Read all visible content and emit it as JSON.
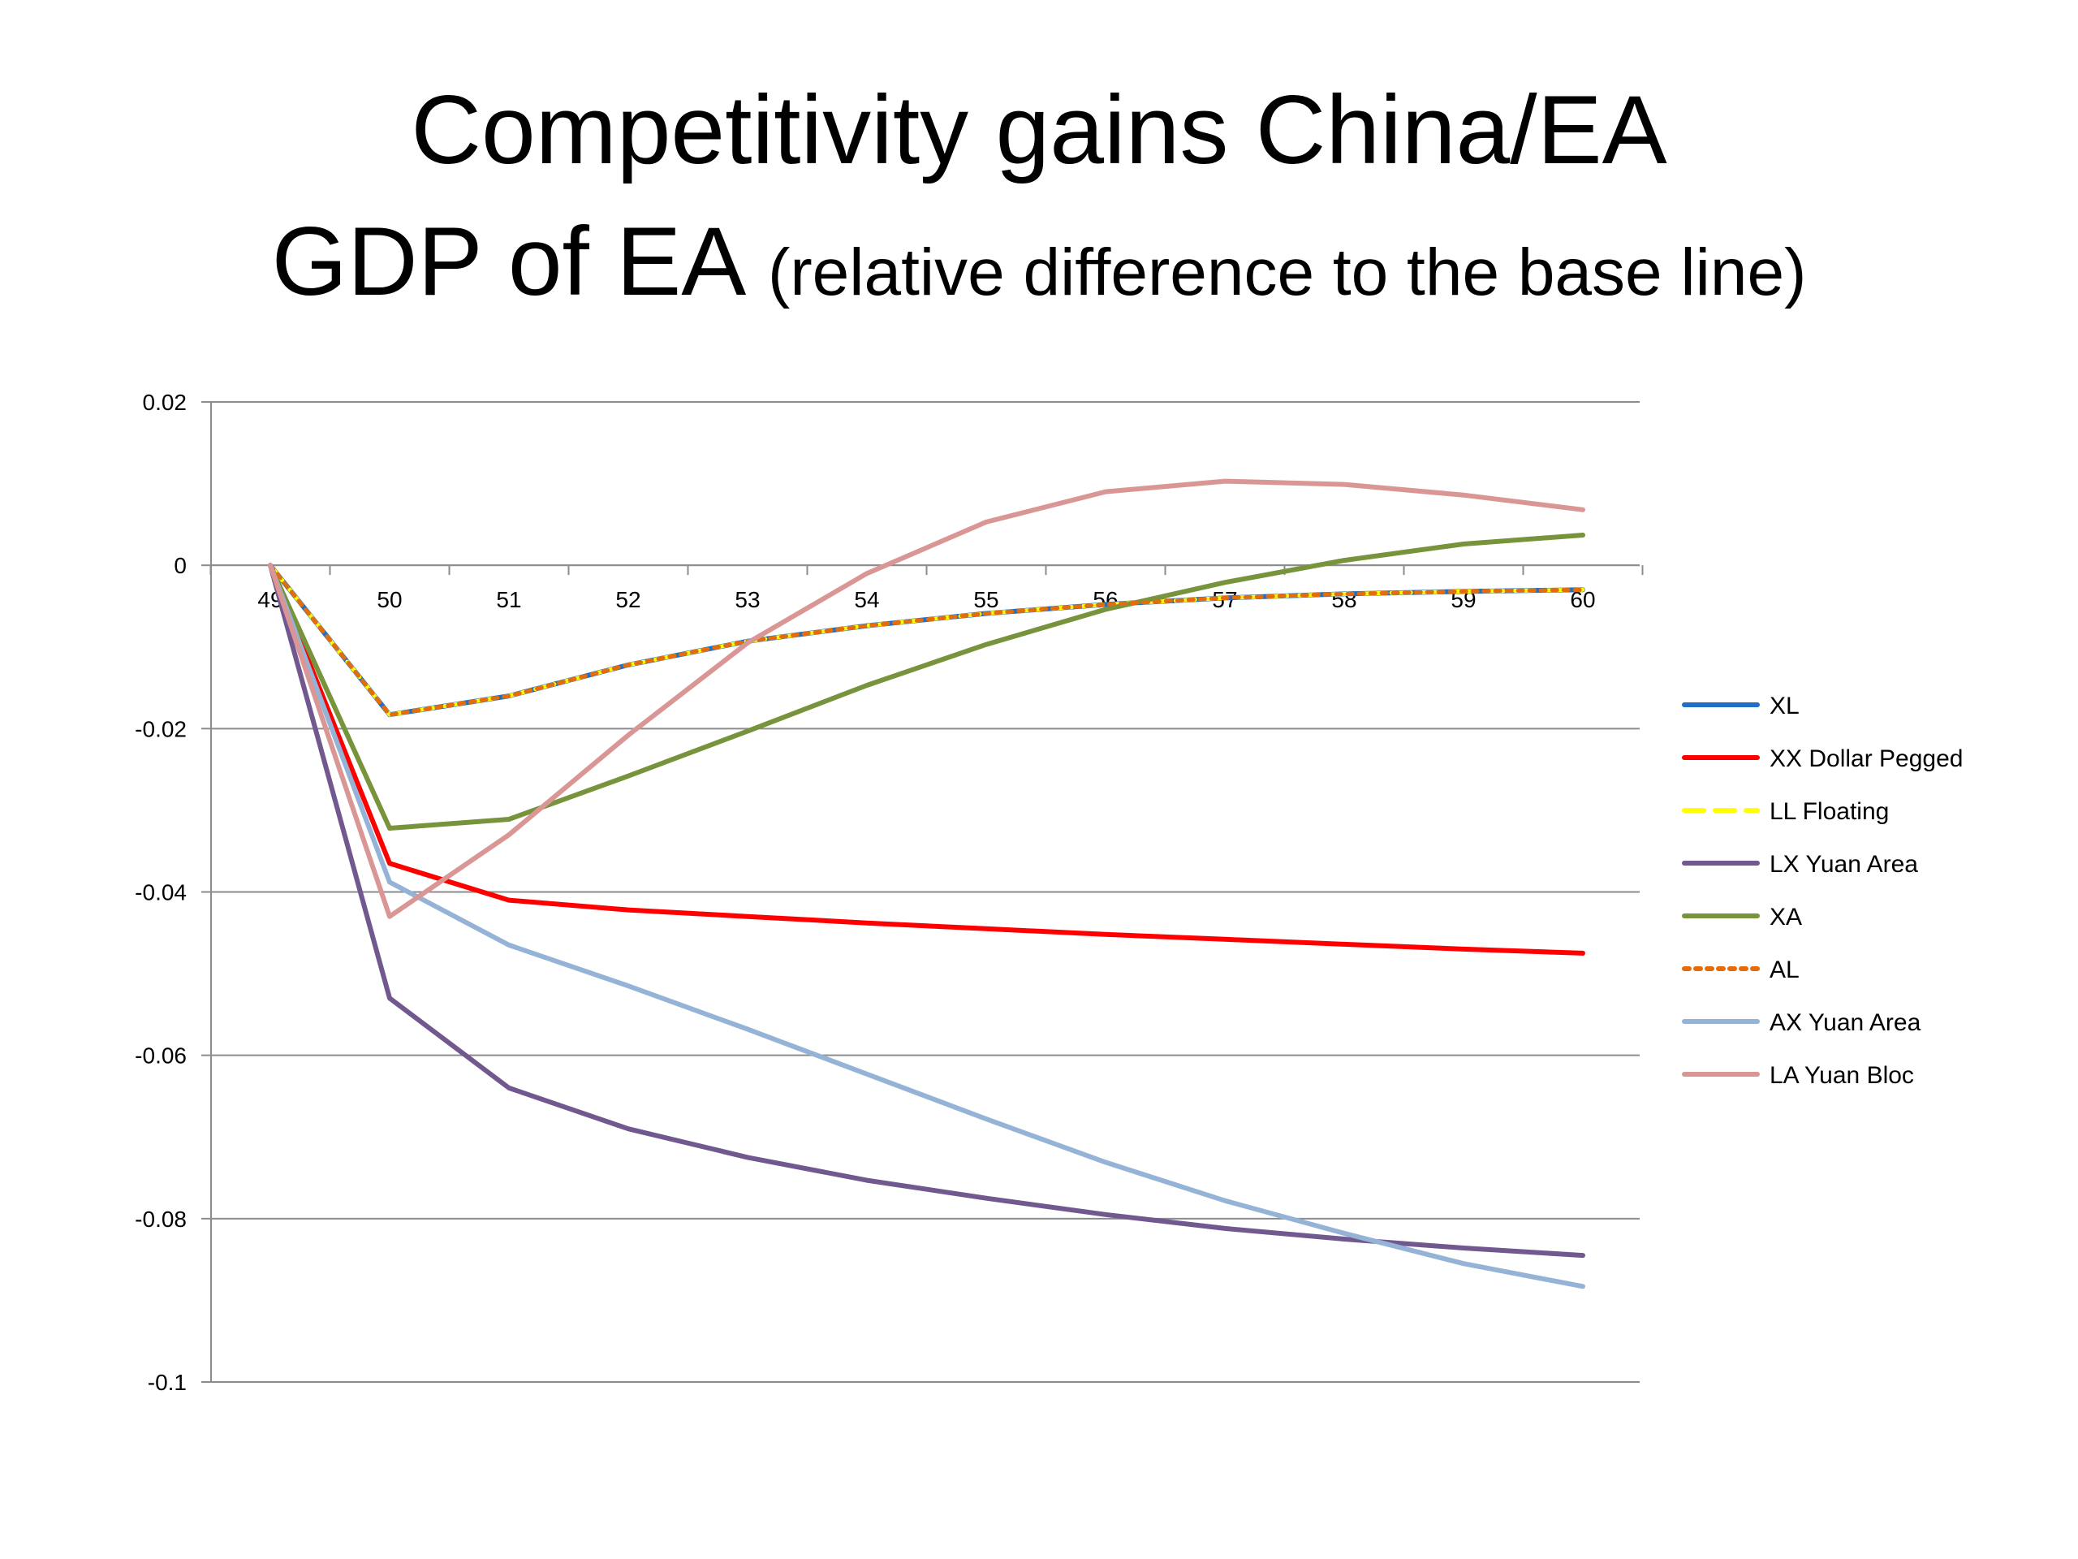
{
  "title": {
    "line1": "Competitivity gains China/EA",
    "line2_main": "GDP of EA",
    "line2_sub": "(relative difference to the base line)"
  },
  "chart_data": {
    "type": "line",
    "title": "Competitivity gains China/EA GDP of EA (relative difference to the base line)",
    "xlabel": "",
    "ylabel": "",
    "x": [
      "49",
      "50",
      "51",
      "52",
      "53",
      "54",
      "55",
      "56",
      "57",
      "58",
      "59",
      "60"
    ],
    "ylim": [
      -0.1,
      0.02
    ],
    "yticks": [
      "0.02",
      "0",
      "-0.02",
      "-0.04",
      "-0.06",
      "-0.08",
      "-0.1"
    ],
    "ytick_values": [
      0.02,
      0,
      -0.02,
      -0.04,
      -0.06,
      -0.08,
      -0.1
    ],
    "grid": true,
    "legend_position": "right",
    "series": [
      {
        "name": "XL",
        "color": "#1f6fc5",
        "style": "solid",
        "values": [
          0,
          -0.0183,
          -0.016,
          -0.0122,
          -0.0093,
          -0.0074,
          -0.0059,
          -0.0048,
          -0.004,
          -0.0035,
          -0.0032,
          -0.003
        ]
      },
      {
        "name": "XX Dollar Pegged",
        "color": "#ff0000",
        "style": "solid",
        "values": [
          0,
          -0.0365,
          -0.041,
          -0.0422,
          -0.043,
          -0.0438,
          -0.0445,
          -0.0452,
          -0.0458,
          -0.0464,
          -0.047,
          -0.0475
        ]
      },
      {
        "name": "LL Floating",
        "color": "#ffff00",
        "style": "dashed",
        "values": [
          0,
          -0.0183,
          -0.016,
          -0.0122,
          -0.0093,
          -0.0074,
          -0.0059,
          -0.0048,
          -0.004,
          -0.0035,
          -0.0032,
          -0.003
        ]
      },
      {
        "name": "LX Yuan Area",
        "color": "#71588f",
        "style": "solid",
        "values": [
          0,
          -0.053,
          -0.064,
          -0.069,
          -0.0725,
          -0.0753,
          -0.0775,
          -0.0795,
          -0.0812,
          -0.0825,
          -0.0836,
          -0.0845
        ]
      },
      {
        "name": "XA",
        "color": "#77933c",
        "style": "solid",
        "values": [
          0,
          -0.0322,
          -0.0311,
          -0.0258,
          -0.0203,
          -0.0147,
          -0.0097,
          -0.0054,
          -0.0021,
          0.0006,
          0.0026,
          0.0037
        ]
      },
      {
        "name": "AL",
        "color": "#e46c0a",
        "style": "dotted",
        "values": [
          0,
          -0.0183,
          -0.016,
          -0.0122,
          -0.0093,
          -0.0074,
          -0.0059,
          -0.0048,
          -0.004,
          -0.0035,
          -0.0032,
          -0.003
        ]
      },
      {
        "name": "AX Yuan Area",
        "color": "#95b3d7",
        "style": "solid",
        "values": [
          0,
          -0.0388,
          -0.0465,
          -0.0515,
          -0.0568,
          -0.0623,
          -0.0678,
          -0.0731,
          -0.0778,
          -0.0818,
          -0.0855,
          -0.0883
        ]
      },
      {
        "name": "LA Yuan Bloc",
        "color": "#d99694",
        "style": "solid",
        "values": [
          0,
          -0.043,
          -0.033,
          -0.0208,
          -0.0095,
          -0.001,
          0.0053,
          0.009,
          0.0103,
          0.0099,
          0.0086,
          0.0068
        ]
      }
    ]
  }
}
